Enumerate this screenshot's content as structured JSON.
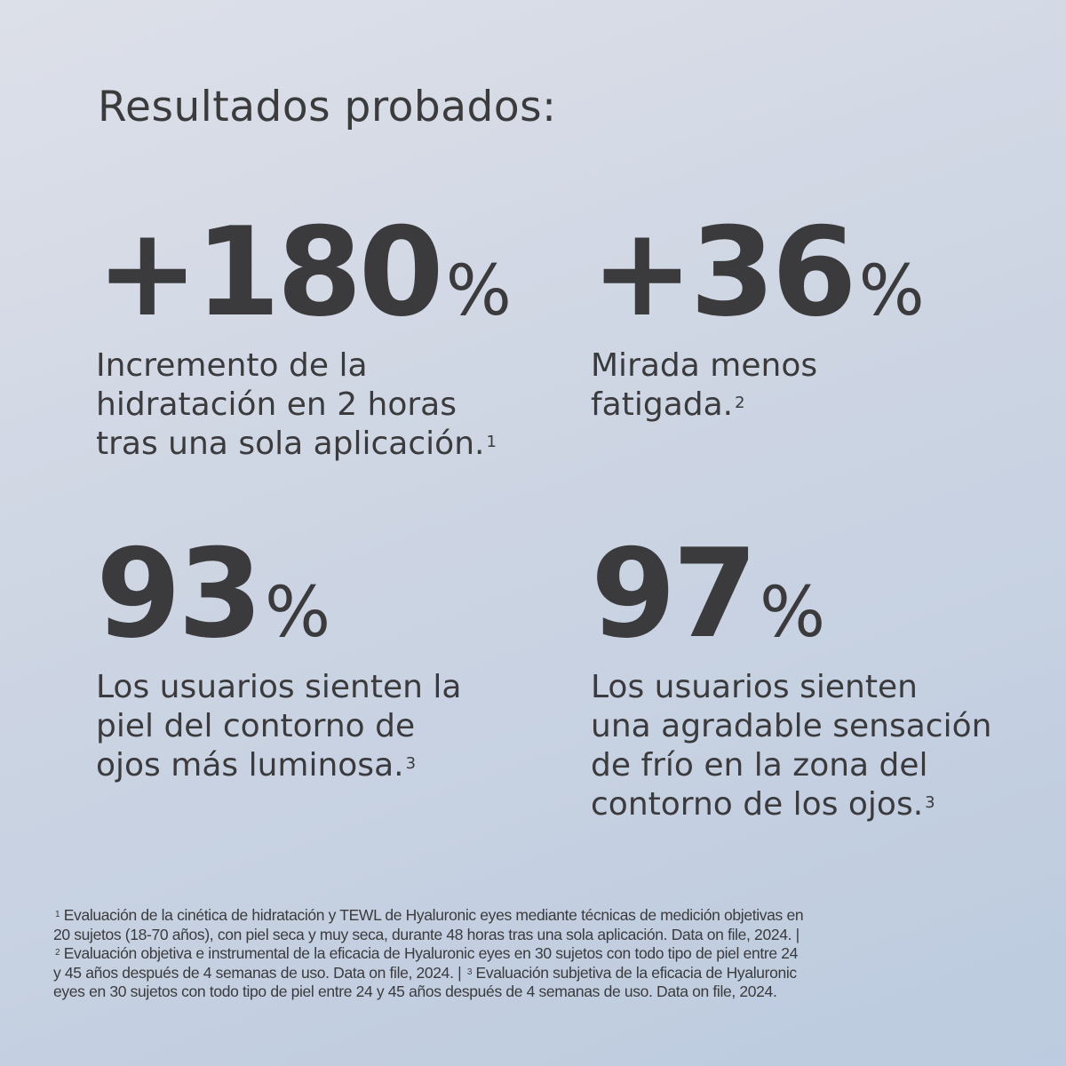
{
  "title": "Resultados probados:",
  "stats": [
    {
      "value": "+180",
      "unit": "%",
      "lines": [
        "Incremento de la",
        "hidratación en 2 horas",
        "tras una sola aplicación."
      ],
      "note": "1"
    },
    {
      "value": "+36",
      "unit": "%",
      "lines": [
        "Mirada menos",
        "fatigada."
      ],
      "note": "2"
    },
    {
      "value": "93",
      "unit": "%",
      "lines": [
        "Los usuarios sienten la",
        "piel del contorno de",
        "ojos más luminosa."
      ],
      "note": "3"
    },
    {
      "value": "97",
      "unit": "%",
      "lines": [
        "Los usuarios sienten",
        "una agradable sensación",
        "de frío en la zona del",
        "contorno de los ojos."
      ],
      "note": "3"
    }
  ],
  "footnotes": {
    "l1_sup": "1",
    "l1": " Evaluación de la cinética de hidratación y TEWL de Hyaluronic eyes mediante técnicas de medición objetivas en",
    "l2": "20 sujetos (18-70 años), con piel seca y muy seca, durante 48 horas tras una sola aplicación. Data on file, 2024. |",
    "l3_sup": "2",
    "l3": " Evaluación objetiva e instrumental de la eficacia de Hyaluronic eyes en 30 sujetos con todo tipo de piel entre 24",
    "l4a": "y 45 años después de 4 semanas de uso. Data on file, 2024. | ",
    "l4_sup": "3",
    "l4b": " Evaluación subjetiva de la eficacia de Hyaluronic",
    "l5": "eyes en 30 sujetos con todo tipo de piel entre 24 y 45 años después de 4 semanas de uso. Data on file, 2024."
  }
}
